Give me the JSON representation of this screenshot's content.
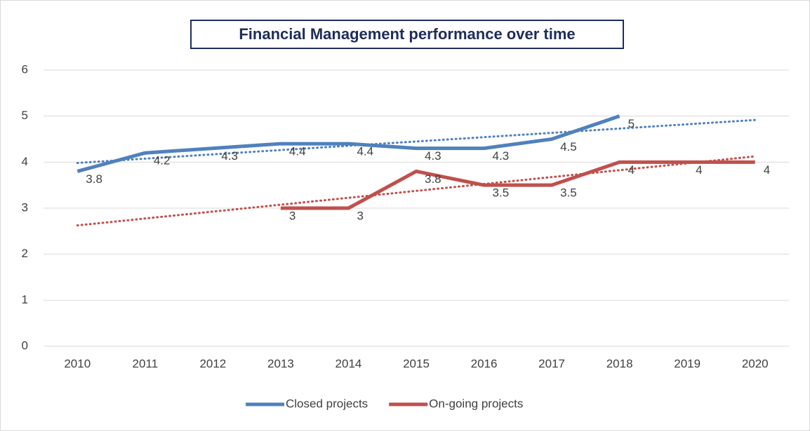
{
  "chart_data": {
    "type": "line",
    "title": "Financial Management performance over time",
    "categories": [
      "2010",
      "2011",
      "2012",
      "2013",
      "2014",
      "2015",
      "2016",
      "2017",
      "2018",
      "2019",
      "2020"
    ],
    "series": [
      {
        "name": "Closed projects",
        "color": "#4f81bd",
        "values": [
          3.8,
          4.2,
          4.3,
          4.4,
          4.4,
          4.3,
          4.3,
          4.5,
          5,
          null,
          null
        ],
        "trendline": true
      },
      {
        "name": "On-going projects",
        "color": "#c0504d",
        "values": [
          null,
          null,
          null,
          3,
          3,
          3.8,
          3.5,
          3.5,
          4,
          4,
          4
        ],
        "trendline": true
      }
    ],
    "ylim": [
      0,
      6
    ],
    "yticks": [
      0,
      1,
      2,
      3,
      4,
      5,
      6
    ],
    "grid": true,
    "legend": "bottom",
    "data_labels": true
  }
}
